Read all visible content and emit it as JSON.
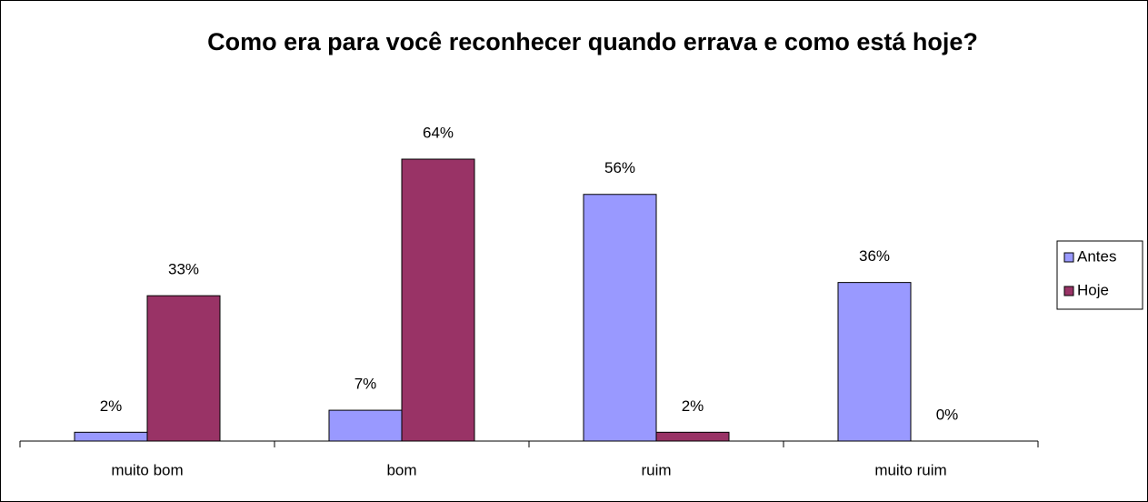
{
  "chart_data": {
    "type": "bar",
    "title": "Como era para você reconhecer quando errava e como está hoje?",
    "categories": [
      "muito bom",
      "bom",
      "ruim",
      "muito ruim"
    ],
    "series": [
      {
        "name": "Antes",
        "color": "#9999ff",
        "values": [
          2,
          7,
          56,
          36
        ],
        "value_labels": [
          "2%",
          "7%",
          "56%",
          "36%"
        ]
      },
      {
        "name": "Hoje",
        "color": "#993366",
        "values": [
          33,
          64,
          2,
          0
        ],
        "value_labels": [
          "33%",
          "64%",
          "2%",
          "0%"
        ]
      }
    ],
    "legend": "right"
  }
}
